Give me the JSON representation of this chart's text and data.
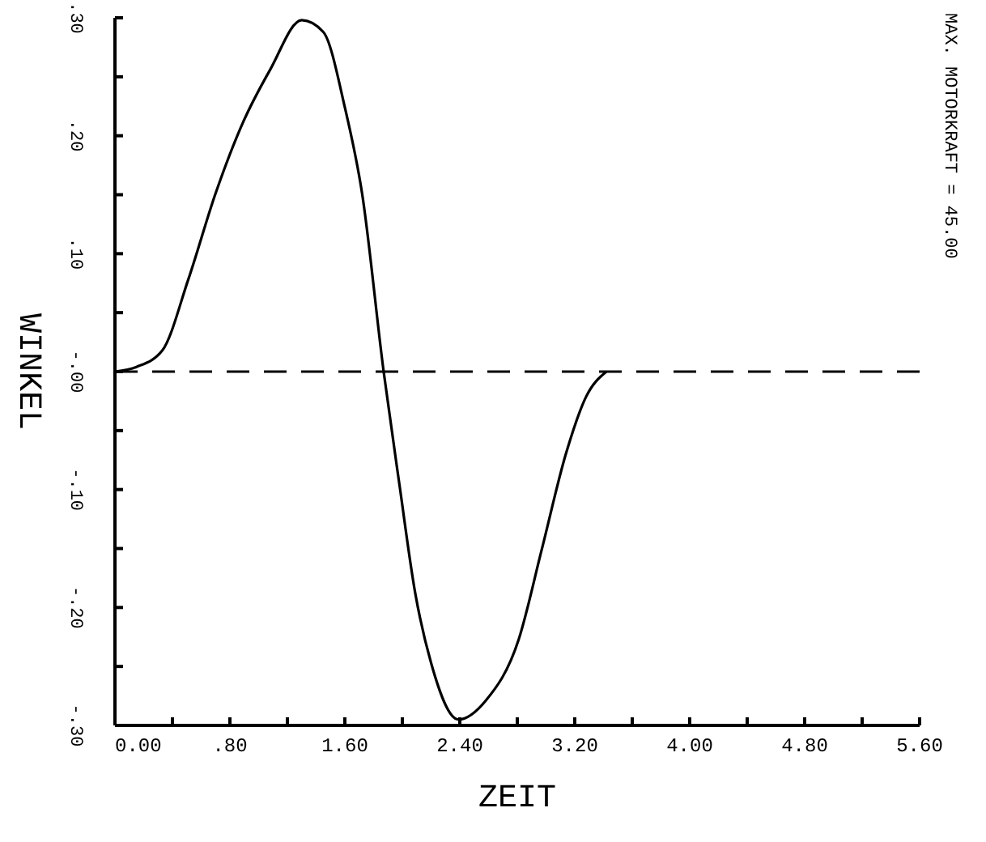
{
  "chart_data": {
    "type": "line",
    "xlabel": "ZEIT",
    "ylabel": "WINKEL",
    "annotations": [
      "MAX. MOTORKRAFT = 45.00"
    ],
    "series": [
      {
        "color": "#000000",
        "x": [
          0,
          0.15,
          0.33,
          0.51,
          0.7,
          0.89,
          1.08,
          1.3,
          1.45,
          1.6,
          1.72,
          1.87,
          1.98,
          2.09,
          2.2,
          2.39,
          2.58,
          2.81,
          2.97,
          3.14,
          3.28,
          3.42
        ],
        "values": [
          0,
          0.004,
          0.018,
          0.078,
          0.151,
          0.211,
          0.256,
          0.298,
          0.288,
          0.224,
          0.151,
          0,
          -0.096,
          -0.188,
          -0.247,
          -0.295,
          -0.279,
          -0.227,
          -0.151,
          -0.069,
          -0.021,
          0
        ]
      }
    ],
    "xlim": [
      0,
      5.6
    ],
    "xticks": [
      {
        "value": 0,
        "label": "0.00"
      },
      {
        "value": 0.4,
        "label": null
      },
      {
        "value": 0.8,
        "label": ".80"
      },
      {
        "value": 1.2,
        "label": null
      },
      {
        "value": 1.6,
        "label": "1.60"
      },
      {
        "value": 2,
        "label": null
      },
      {
        "value": 2.4,
        "label": "2.40"
      },
      {
        "value": 2.8,
        "label": null
      },
      {
        "value": 3.2,
        "label": "3.20"
      },
      {
        "value": 3.6,
        "label": null
      },
      {
        "value": 4,
        "label": "4.00"
      },
      {
        "value": 4.4,
        "label": null
      },
      {
        "value": 4.8,
        "label": "4.80"
      },
      {
        "value": 5.2,
        "label": null
      },
      {
        "value": 5.6,
        "label": "5.60"
      }
    ],
    "ylim": [
      -0.3,
      0.3
    ],
    "yticks": [
      {
        "value": -0.3,
        "label": "-.30"
      },
      {
        "value": -0.25,
        "label": null
      },
      {
        "value": -0.2,
        "label": "-.20"
      },
      {
        "value": -0.15,
        "label": null
      },
      {
        "value": -0.1,
        "label": "-.10"
      },
      {
        "value": -0.05,
        "label": null
      },
      {
        "value": 0,
        "label": "-.00"
      },
      {
        "value": 0.05,
        "label": null
      },
      {
        "value": 0.1,
        "label": ".10"
      },
      {
        "value": 0.15,
        "label": null
      },
      {
        "value": 0.2,
        "label": ".20"
      },
      {
        "value": 0.25,
        "label": null
      },
      {
        "value": 0.3,
        "label": ".30"
      }
    ],
    "ref_lines": [
      {
        "axis": "y",
        "value": 0,
        "color": "#000000",
        "line_style": "dashed"
      }
    ],
    "grid": false,
    "marker": "none",
    "line_style": "solid"
  }
}
